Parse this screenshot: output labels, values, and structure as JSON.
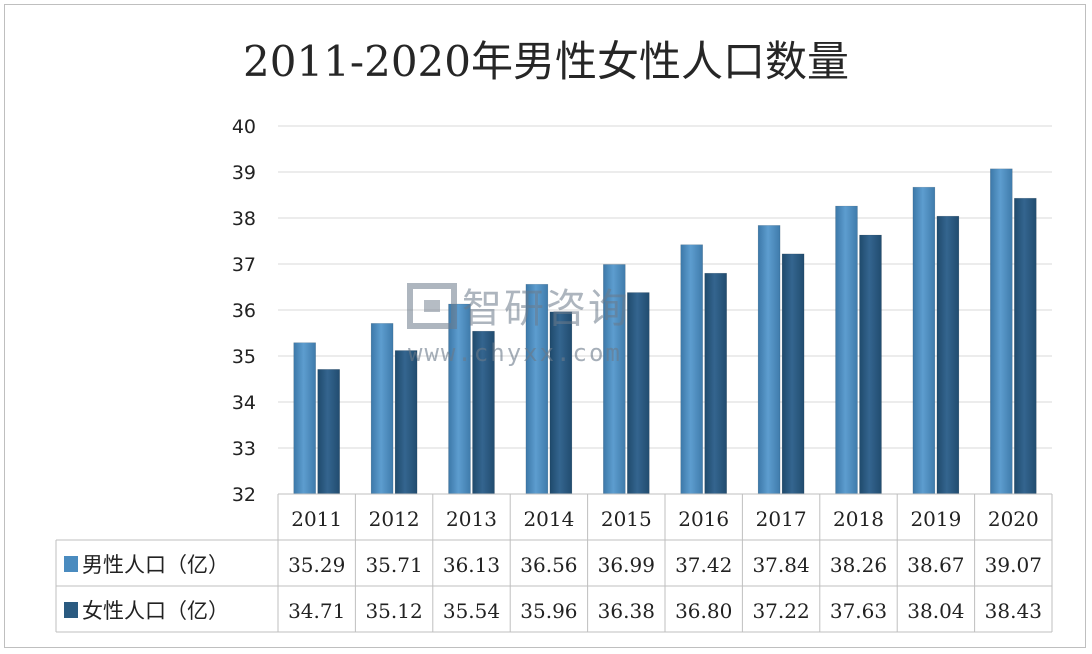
{
  "chart_data": {
    "type": "bar",
    "title": "2011-2020年男性女性人口数量",
    "categories": [
      "2011",
      "2012",
      "2013",
      "2014",
      "2015",
      "2016",
      "2017",
      "2018",
      "2019",
      "2020"
    ],
    "series": [
      {
        "name": "男性人口（亿）",
        "color": "#4a8bbf",
        "values": [
          35.29,
          35.71,
          36.13,
          36.56,
          36.99,
          37.42,
          37.84,
          38.26,
          38.67,
          39.07
        ]
      },
      {
        "name": "女性人口（亿）",
        "color": "#2a5a80",
        "values": [
          34.71,
          35.12,
          35.54,
          35.96,
          36.38,
          36.8,
          37.22,
          37.63,
          38.04,
          38.43
        ]
      }
    ],
    "ylim": [
      32,
      40
    ],
    "yticks": [
      32,
      33,
      34,
      35,
      36,
      37,
      38,
      39,
      40
    ],
    "grid": true,
    "legend": "data-table"
  },
  "watermark": {
    "brand": "智研咨询",
    "url": "www.chyxx.com"
  }
}
